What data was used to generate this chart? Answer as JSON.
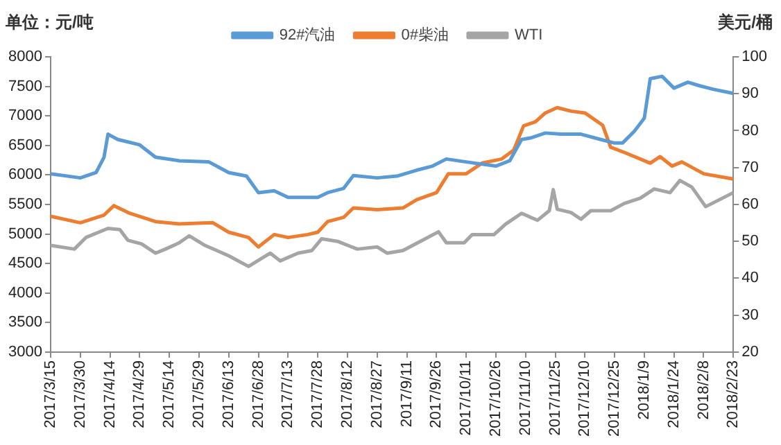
{
  "chart_data": {
    "type": "line",
    "ylabel": "单位：元/吨",
    "y2label": "美元/桶",
    "legend": "top",
    "grid": false,
    "marker": "none",
    "line_style": "solid",
    "xlim": [
      "2017-03-15",
      "2018-02-23"
    ],
    "xticks": [
      {
        "value": "2017-03-15",
        "label": "2017/3/15"
      },
      {
        "value": "2017-03-30",
        "label": "2017/3/30"
      },
      {
        "value": "2017-04-14",
        "label": "2017/4/14"
      },
      {
        "value": "2017-04-29",
        "label": "2017/4/29"
      },
      {
        "value": "2017-05-14",
        "label": "2017/5/14"
      },
      {
        "value": "2017-05-29",
        "label": "2017/5/29"
      },
      {
        "value": "2017-06-13",
        "label": "2017/6/13"
      },
      {
        "value": "2017-06-28",
        "label": "2017/6/28"
      },
      {
        "value": "2017-07-13",
        "label": "2017/7/13"
      },
      {
        "value": "2017-07-28",
        "label": "2017/7/28"
      },
      {
        "value": "2017-08-12",
        "label": "2017/8/12"
      },
      {
        "value": "2017-08-27",
        "label": "2017/8/27"
      },
      {
        "value": "2017-09-11",
        "label": "2017/9/11"
      },
      {
        "value": "2017-09-26",
        "label": "2017/9/26"
      },
      {
        "value": "2017-10-11",
        "label": "2017/10/11"
      },
      {
        "value": "2017-10-26",
        "label": "2017/10/26"
      },
      {
        "value": "2017-11-10",
        "label": "2017/11/10"
      },
      {
        "value": "2017-11-25",
        "label": "2017/11/25"
      },
      {
        "value": "2017-12-10",
        "label": "2017/12/10"
      },
      {
        "value": "2017-12-25",
        "label": "2017/12/25"
      },
      {
        "value": "2018-01-09",
        "label": "2018/1/9"
      },
      {
        "value": "2018-01-24",
        "label": "2018/1/24"
      },
      {
        "value": "2018-02-08",
        "label": "2018/2/8"
      },
      {
        "value": "2018-02-23",
        "label": "2018/2/23"
      }
    ],
    "ylim": [
      3000,
      8000
    ],
    "yticks": [
      3000,
      3500,
      4000,
      4500,
      5000,
      5500,
      6000,
      6500,
      7000,
      7500,
      8000
    ],
    "y2lim": [
      20,
      100
    ],
    "y2ticks": [
      20,
      30,
      40,
      50,
      60,
      70,
      80,
      90,
      100
    ],
    "series": [
      {
        "name": "92#汽油",
        "color": "#5b9bd5",
        "x": [
          "2017-03-15",
          "2017-03-30",
          "2017-04-07",
          "2017-04-11",
          "2017-04-13",
          "2017-04-18",
          "2017-04-29",
          "2017-05-07",
          "2017-05-19",
          "2017-06-03",
          "2017-06-13",
          "2017-06-22",
          "2017-06-28",
          "2017-07-06",
          "2017-07-13",
          "2017-07-28",
          "2017-08-02",
          "2017-08-10",
          "2017-08-15",
          "2017-08-27",
          "2017-09-06",
          "2017-09-16",
          "2017-09-24",
          "2017-10-01",
          "2017-10-11",
          "2017-10-26",
          "2017-11-02",
          "2017-11-08",
          "2017-11-13",
          "2017-11-20",
          "2017-11-28",
          "2017-12-08",
          "2017-12-18",
          "2017-12-25",
          "2017-12-29",
          "2018-01-04",
          "2018-01-09",
          "2018-01-12",
          "2018-01-18",
          "2018-01-24",
          "2018-01-31",
          "2018-02-06",
          "2018-02-13",
          "2018-02-23"
        ],
        "values": [
          6020,
          5950,
          6040,
          6300,
          6690,
          6600,
          6510,
          6300,
          6240,
          6220,
          6040,
          5980,
          5700,
          5730,
          5620,
          5620,
          5700,
          5770,
          5990,
          5950,
          5980,
          6080,
          6150,
          6270,
          6220,
          6150,
          6240,
          6600,
          6630,
          6710,
          6690,
          6690,
          6600,
          6540,
          6540,
          6740,
          6960,
          7630,
          7670,
          7470,
          7570,
          7510,
          7450,
          7380
        ]
      },
      {
        "name": "0#柴油",
        "color": "#ed7d31",
        "x": [
          "2017-03-15",
          "2017-03-30",
          "2017-04-11",
          "2017-04-16",
          "2017-04-24",
          "2017-05-07",
          "2017-05-19",
          "2017-06-05",
          "2017-06-13",
          "2017-06-23",
          "2017-06-28",
          "2017-07-06",
          "2017-07-13",
          "2017-07-23",
          "2017-07-28",
          "2017-08-02",
          "2017-08-10",
          "2017-08-15",
          "2017-08-27",
          "2017-09-09",
          "2017-09-16",
          "2017-09-26",
          "2017-10-02",
          "2017-10-11",
          "2017-10-19",
          "2017-10-29",
          "2017-11-04",
          "2017-11-09",
          "2017-11-15",
          "2017-11-20",
          "2017-11-26",
          "2017-12-03",
          "2017-12-10",
          "2017-12-19",
          "2017-12-23",
          "2017-12-30",
          "2018-01-12",
          "2018-01-17",
          "2018-01-23",
          "2018-01-28",
          "2018-02-08",
          "2018-02-23"
        ],
        "values": [
          5300,
          5190,
          5320,
          5480,
          5350,
          5210,
          5170,
          5190,
          5030,
          4940,
          4780,
          4990,
          4940,
          4990,
          5030,
          5210,
          5280,
          5440,
          5410,
          5440,
          5580,
          5700,
          6020,
          6020,
          6200,
          6270,
          6420,
          6830,
          6900,
          7050,
          7140,
          7080,
          7050,
          6840,
          6470,
          6380,
          6200,
          6310,
          6150,
          6220,
          6020,
          5930
        ]
      },
      {
        "name": "WTI",
        "color": "#a5a5a5",
        "axis": "y2",
        "x": [
          "2017-03-15",
          "2017-03-27",
          "2017-04-02",
          "2017-04-13",
          "2017-04-19",
          "2017-04-23",
          "2017-04-30",
          "2017-05-07",
          "2017-05-12",
          "2017-05-19",
          "2017-05-24",
          "2017-06-01",
          "2017-06-13",
          "2017-06-23",
          "2017-07-04",
          "2017-07-09",
          "2017-07-18",
          "2017-07-25",
          "2017-07-30",
          "2017-08-07",
          "2017-08-17",
          "2017-08-27",
          "2017-09-01",
          "2017-09-09",
          "2017-09-19",
          "2017-09-27",
          "2017-10-01",
          "2017-10-10",
          "2017-10-14",
          "2017-10-25",
          "2017-10-31",
          "2017-11-08",
          "2017-11-16",
          "2017-11-22",
          "2017-11-24",
          "2017-11-26",
          "2017-12-03",
          "2017-12-08",
          "2017-12-13",
          "2017-12-23",
          "2017-12-30",
          "2018-01-07",
          "2018-01-14",
          "2018-01-22",
          "2018-01-27",
          "2018-02-02",
          "2018-02-09",
          "2018-02-23"
        ],
        "values": [
          48.9,
          47.9,
          51.1,
          53.5,
          53.2,
          50.3,
          49.3,
          46.8,
          47.9,
          49.6,
          51.5,
          48.9,
          46.1,
          43.2,
          46.8,
          44.7,
          46.8,
          47.5,
          50.7,
          50,
          47.9,
          48.5,
          46.8,
          47.5,
          50.3,
          52.6,
          49.6,
          49.6,
          51.8,
          51.8,
          54.7,
          57.6,
          55.7,
          58.3,
          64,
          58.7,
          57.8,
          56,
          58.3,
          58.3,
          60.3,
          61.7,
          64.2,
          63.2,
          66.5,
          64.7,
          59.4,
          63.2
        ]
      }
    ]
  }
}
